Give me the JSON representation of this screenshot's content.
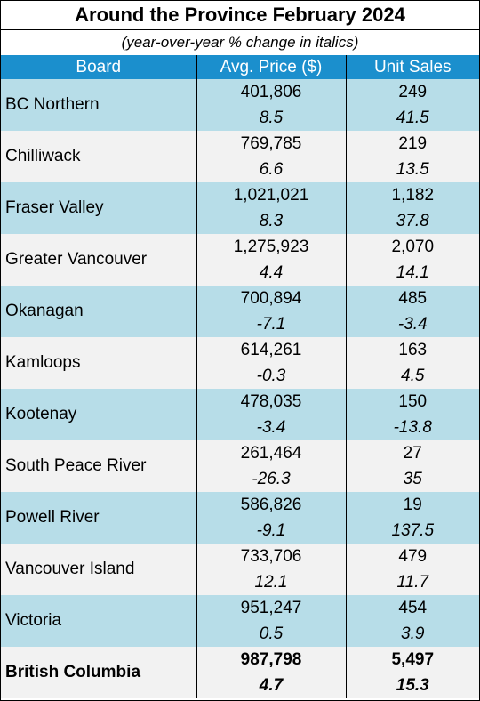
{
  "chart_data": {
    "type": "table",
    "title": "Around the Province February 2024",
    "subtitle": "(year-over-year % change in italics)",
    "columns": [
      "Board",
      "Avg. Price ($)",
      "Unit Sales"
    ],
    "rows": [
      {
        "board": "BC Northern",
        "price": "401,806",
        "price_change": "8.5",
        "sales": "249",
        "sales_change": "41.5"
      },
      {
        "board": "Chilliwack",
        "price": "769,785",
        "price_change": "6.6",
        "sales": "219",
        "sales_change": "13.5"
      },
      {
        "board": "Fraser Valley",
        "price": "1,021,021",
        "price_change": "8.3",
        "sales": "1,182",
        "sales_change": "37.8"
      },
      {
        "board": "Greater Vancouver",
        "price": "1,275,923",
        "price_change": "4.4",
        "sales": "2,070",
        "sales_change": "14.1"
      },
      {
        "board": "Okanagan",
        "price": "700,894",
        "price_change": "-7.1",
        "sales": "485",
        "sales_change": "-3.4"
      },
      {
        "board": "Kamloops",
        "price": "614,261",
        "price_change": "-0.3",
        "sales": "163",
        "sales_change": "4.5"
      },
      {
        "board": "Kootenay",
        "price": "478,035",
        "price_change": "-3.4",
        "sales": "150",
        "sales_change": "-13.8"
      },
      {
        "board": "South Peace River",
        "price": "261,464",
        "price_change": "-26.3",
        "sales": "27",
        "sales_change": "35"
      },
      {
        "board": "Powell River",
        "price": "586,826",
        "price_change": "-9.1",
        "sales": "19",
        "sales_change": "137.5"
      },
      {
        "board": "Vancouver Island",
        "price": "733,706",
        "price_change": "12.1",
        "sales": "479",
        "sales_change": "11.7"
      },
      {
        "board": "Victoria",
        "price": "951,247",
        "price_change": "0.5",
        "sales": "454",
        "sales_change": "3.9"
      }
    ],
    "total": {
      "board": "British Columbia",
      "price": "987,798",
      "price_change": "4.7",
      "sales": "5,497",
      "sales_change": "15.3"
    },
    "colors": {
      "header_bg": "#1b8fcd",
      "band_blue": "#b7dde8",
      "band_grey": "#f2f2f2"
    }
  }
}
